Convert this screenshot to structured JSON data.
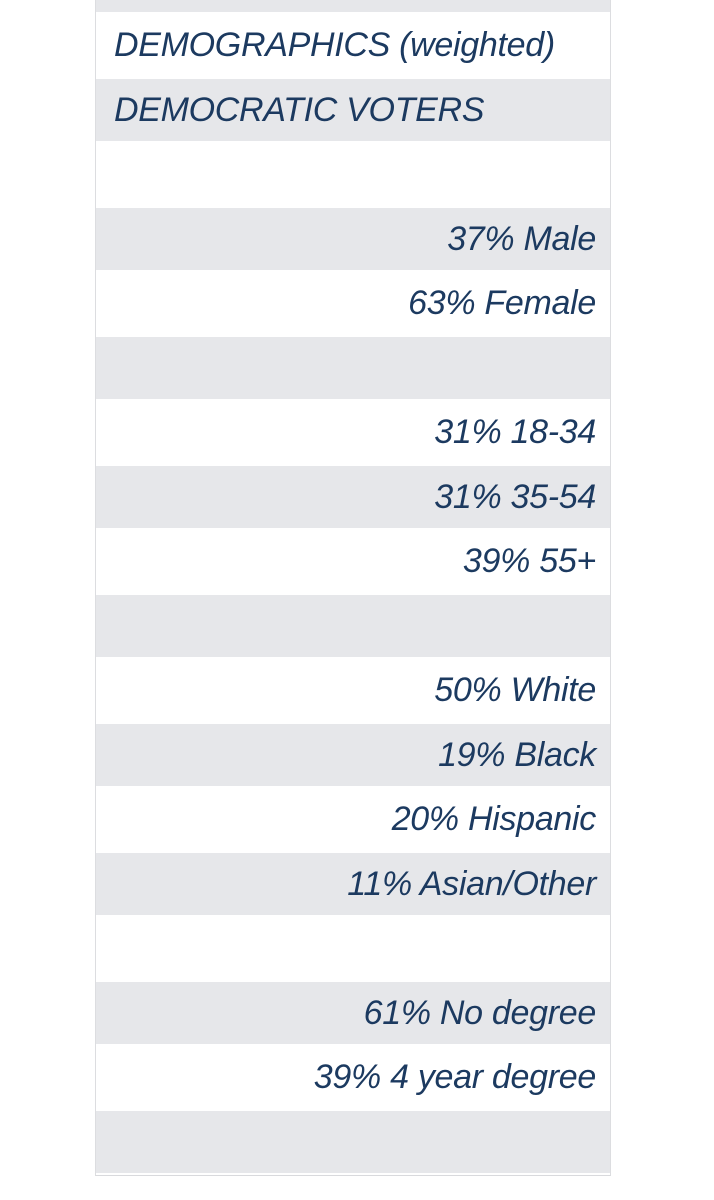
{
  "colors": {
    "text_navy": "#1c3a60",
    "row_gray": "#e6e7ea",
    "table_edge": "#dcdde0"
  },
  "rows": [
    {
      "type": "header",
      "text": "DEMOGRAPHICS (weighted)"
    },
    {
      "type": "header",
      "text": "DEMOCRATIC VOTERS"
    },
    {
      "type": "spacer",
      "text": ""
    },
    {
      "type": "data",
      "text": "37% Male"
    },
    {
      "type": "data",
      "text": "63% Female"
    },
    {
      "type": "spacer",
      "text": ""
    },
    {
      "type": "data",
      "text": "31% 18-34"
    },
    {
      "type": "data",
      "text": "31% 35-54"
    },
    {
      "type": "data",
      "text": "39% 55+"
    },
    {
      "type": "spacer",
      "text": ""
    },
    {
      "type": "data",
      "text": "50% White"
    },
    {
      "type": "data",
      "text": "19% Black"
    },
    {
      "type": "data",
      "text": "20% Hispanic"
    },
    {
      "type": "data",
      "text": "11% Asian/Other"
    },
    {
      "type": "spacer",
      "text": ""
    },
    {
      "type": "data",
      "text": "61% No degree"
    },
    {
      "type": "data",
      "text": "39% 4 year degree"
    },
    {
      "type": "spacer",
      "text": ""
    }
  ],
  "chart_data": {
    "type": "table",
    "title": "DEMOGRAPHICS (weighted)",
    "subtitle": "DEMOCRATIC VOTERS",
    "unit": "percent",
    "groups": [
      {
        "items": [
          {
            "pct": 37,
            "label": "Male"
          },
          {
            "pct": 63,
            "label": "Female"
          }
        ]
      },
      {
        "items": [
          {
            "pct": 31,
            "label": "18-34"
          },
          {
            "pct": 31,
            "label": "35-54"
          },
          {
            "pct": 39,
            "label": "55+"
          }
        ]
      },
      {
        "items": [
          {
            "pct": 50,
            "label": "White"
          },
          {
            "pct": 19,
            "label": "Black"
          },
          {
            "pct": 20,
            "label": "Hispanic"
          },
          {
            "pct": 11,
            "label": "Asian/Other"
          }
        ]
      },
      {
        "items": [
          {
            "pct": 61,
            "label": "No degree"
          },
          {
            "pct": 39,
            "label": "4 year degree"
          }
        ]
      }
    ]
  }
}
